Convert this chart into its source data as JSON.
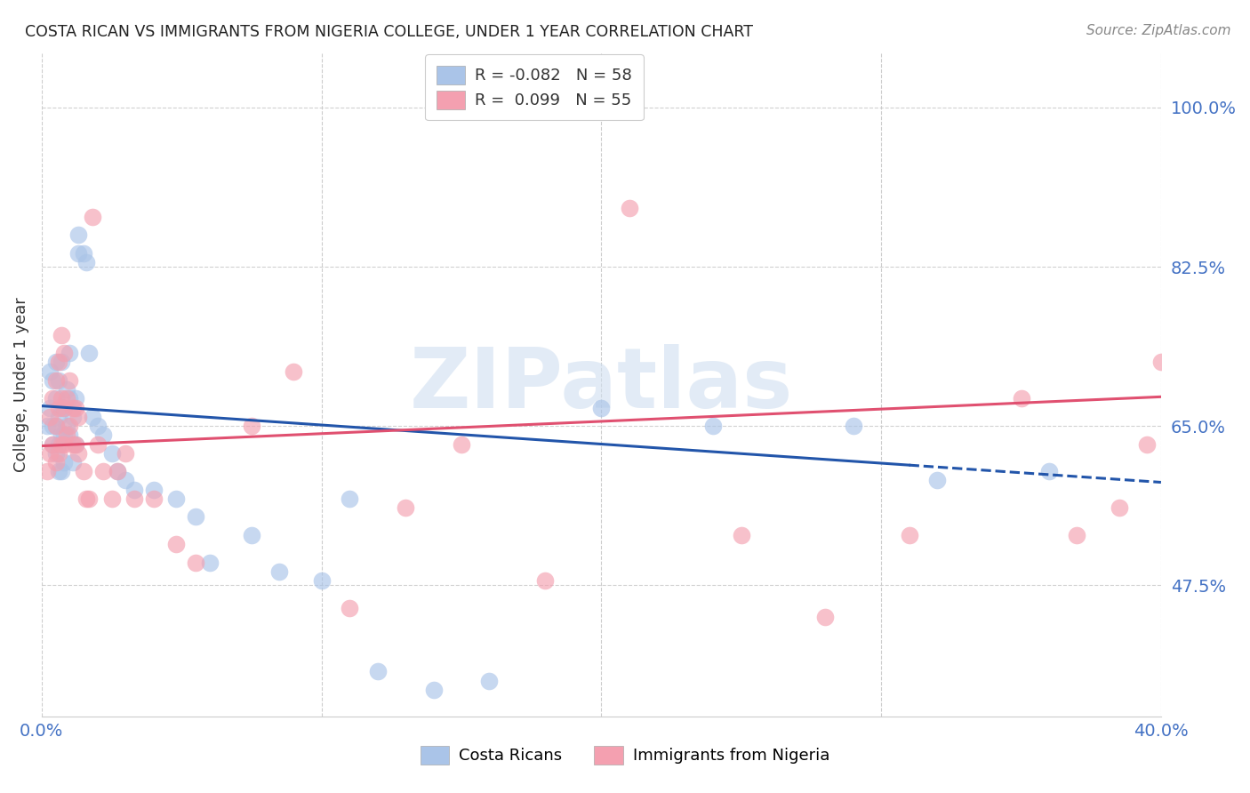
{
  "title": "COSTA RICAN VS IMMIGRANTS FROM NIGERIA COLLEGE, UNDER 1 YEAR CORRELATION CHART",
  "source": "Source: ZipAtlas.com",
  "ylabel": "College, Under 1 year",
  "yticks": [
    0.475,
    0.65,
    0.825,
    1.0
  ],
  "ytick_labels": [
    "47.5%",
    "65.0%",
    "82.5%",
    "100.0%"
  ],
  "xlim": [
    0.0,
    0.4
  ],
  "ylim": [
    0.33,
    1.06
  ],
  "legend_label1": "Costa Ricans",
  "legend_label2": "Immigrants from Nigeria",
  "color_blue": "#aac4e8",
  "color_pink": "#f4a0b0",
  "line_color_blue": "#2255aa",
  "line_color_pink": "#e05070",
  "watermark": "ZIPatlas",
  "blue_x": [
    0.002,
    0.003,
    0.003,
    0.004,
    0.004,
    0.004,
    0.005,
    0.005,
    0.005,
    0.005,
    0.006,
    0.006,
    0.006,
    0.006,
    0.007,
    0.007,
    0.007,
    0.007,
    0.008,
    0.008,
    0.008,
    0.009,
    0.009,
    0.01,
    0.01,
    0.01,
    0.011,
    0.011,
    0.012,
    0.012,
    0.013,
    0.013,
    0.015,
    0.016,
    0.017,
    0.018,
    0.02,
    0.022,
    0.025,
    0.027,
    0.03,
    0.033,
    0.04,
    0.048,
    0.055,
    0.06,
    0.075,
    0.085,
    0.1,
    0.11,
    0.12,
    0.14,
    0.16,
    0.2,
    0.24,
    0.29,
    0.32,
    0.36
  ],
  "blue_y": [
    0.65,
    0.67,
    0.71,
    0.63,
    0.65,
    0.7,
    0.62,
    0.65,
    0.68,
    0.72,
    0.6,
    0.63,
    0.66,
    0.7,
    0.6,
    0.64,
    0.67,
    0.72,
    0.61,
    0.64,
    0.67,
    0.65,
    0.69,
    0.64,
    0.68,
    0.73,
    0.61,
    0.66,
    0.63,
    0.68,
    0.84,
    0.86,
    0.84,
    0.83,
    0.73,
    0.66,
    0.65,
    0.64,
    0.62,
    0.6,
    0.59,
    0.58,
    0.58,
    0.57,
    0.55,
    0.5,
    0.53,
    0.49,
    0.48,
    0.57,
    0.38,
    0.36,
    0.37,
    0.67,
    0.65,
    0.65,
    0.59,
    0.6
  ],
  "pink_x": [
    0.002,
    0.003,
    0.003,
    0.004,
    0.004,
    0.005,
    0.005,
    0.005,
    0.006,
    0.006,
    0.006,
    0.007,
    0.007,
    0.007,
    0.008,
    0.008,
    0.008,
    0.009,
    0.009,
    0.01,
    0.01,
    0.011,
    0.011,
    0.012,
    0.012,
    0.013,
    0.013,
    0.015,
    0.016,
    0.017,
    0.018,
    0.02,
    0.022,
    0.025,
    0.027,
    0.03,
    0.033,
    0.04,
    0.048,
    0.055,
    0.075,
    0.09,
    0.11,
    0.13,
    0.15,
    0.18,
    0.21,
    0.25,
    0.28,
    0.31,
    0.35,
    0.37,
    0.385,
    0.395,
    0.4
  ],
  "pink_y": [
    0.6,
    0.62,
    0.66,
    0.63,
    0.68,
    0.61,
    0.65,
    0.7,
    0.62,
    0.67,
    0.72,
    0.63,
    0.68,
    0.75,
    0.63,
    0.67,
    0.73,
    0.64,
    0.68,
    0.65,
    0.7,
    0.63,
    0.67,
    0.63,
    0.67,
    0.62,
    0.66,
    0.6,
    0.57,
    0.57,
    0.88,
    0.63,
    0.6,
    0.57,
    0.6,
    0.62,
    0.57,
    0.57,
    0.52,
    0.5,
    0.65,
    0.71,
    0.45,
    0.56,
    0.63,
    0.48,
    0.89,
    0.53,
    0.44,
    0.53,
    0.68,
    0.53,
    0.56,
    0.63,
    0.72
  ],
  "blue_R": -0.082,
  "blue_N": 58,
  "pink_R": 0.099,
  "pink_N": 55,
  "blue_line_x0": 0.0,
  "blue_line_y0": 0.672,
  "blue_line_x1": 0.4,
  "blue_line_y1": 0.588,
  "pink_line_x0": 0.0,
  "pink_line_y0": 0.628,
  "pink_line_x1": 0.4,
  "pink_line_y1": 0.682
}
